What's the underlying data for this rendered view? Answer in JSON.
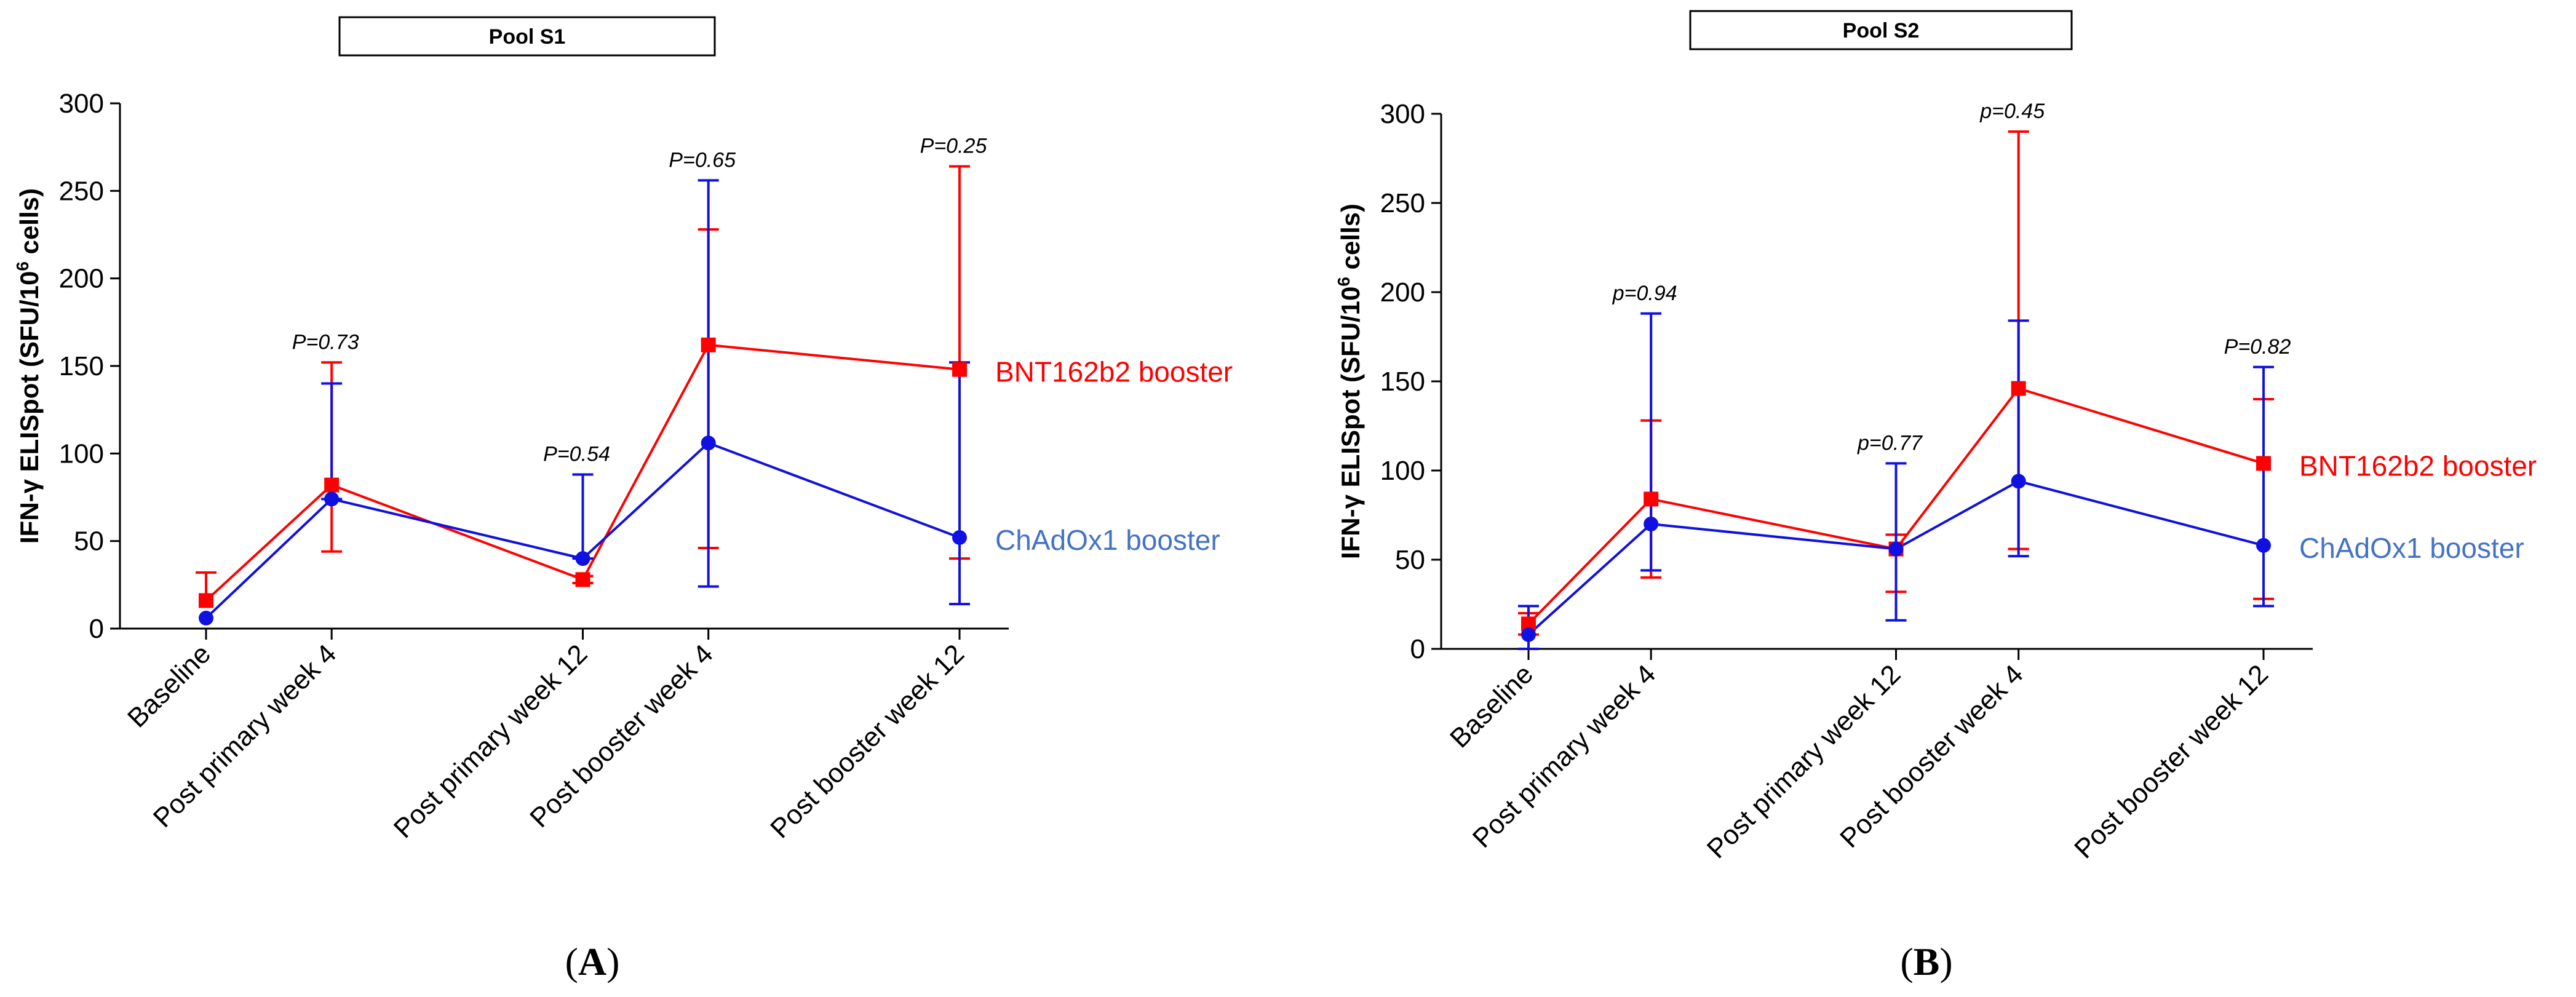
{
  "chart_data": [
    {
      "type": "line",
      "title": "Pool S1",
      "ylabel": "IFN-γ ELISpot (SFU/10⁶ cells)",
      "ylabel_main": "IFN-γ ELISpot (SFU/10",
      "ylabel_sup": "6",
      "ylabel_tail": " cells)",
      "ylim": [
        0,
        300
      ],
      "yticks": [
        0,
        50,
        100,
        150,
        200,
        250,
        300
      ],
      "categories": [
        "Baseline",
        "Post primary week 4",
        "Post primary week 12",
        "Post booster week 4",
        "Post booster week 12"
      ],
      "x": [
        0,
        4,
        12,
        16,
        24
      ],
      "xlim": [
        0,
        24
      ],
      "series": [
        {
          "name": "BNT162b2 booster",
          "color": "#ff0000",
          "marker": "square",
          "values": [
            16,
            82,
            28,
            162,
            148
          ],
          "err_low": [
            null,
            44,
            26,
            46,
            40
          ],
          "err_high": [
            32,
            152,
            30,
            228,
            264
          ]
        },
        {
          "name": "ChAdOx1 booster",
          "color": "#1010e0",
          "label_color": "#4472c4",
          "marker": "circle",
          "values": [
            6,
            74,
            40,
            106,
            52
          ],
          "err_low": [
            null,
            74,
            40,
            24,
            14
          ],
          "err_high": [
            null,
            140,
            88,
            256,
            152
          ]
        }
      ],
      "pvalues": [
        {
          "x": 4,
          "text": "P=0.73"
        },
        {
          "x": 12,
          "text": "P=0.54"
        },
        {
          "x": 16,
          "text": "P=0.65"
        },
        {
          "x": 24,
          "text": "P=0.25"
        }
      ],
      "panel_label": "A"
    },
    {
      "type": "line",
      "title": "Pool S2",
      "ylabel": "IFN-γ ELISpot (SFU/10⁶ cells)",
      "ylabel_main": "IFN-γ ELISpot (SFU/10",
      "ylabel_sup": "6",
      "ylabel_tail": " cells)",
      "ylim": [
        0,
        300
      ],
      "yticks": [
        0,
        50,
        100,
        150,
        200,
        250,
        300
      ],
      "categories": [
        "Baseline",
        "Post primary week 4",
        "Post primary week 12",
        "Post booster week 4",
        "Post booster week 12"
      ],
      "x": [
        0,
        4,
        12,
        16,
        24
      ],
      "xlim": [
        0,
        24
      ],
      "series": [
        {
          "name": "BNT162b2 booster",
          "color": "#ff0000",
          "marker": "square",
          "values": [
            14,
            84,
            56,
            146,
            104
          ],
          "err_low": [
            8,
            40,
            32,
            56,
            28
          ],
          "err_high": [
            20,
            128,
            64,
            290,
            140
          ]
        },
        {
          "name": "ChAdOx1 booster",
          "color": "#1010e0",
          "label_color": "#4472c4",
          "marker": "circle",
          "values": [
            8,
            70,
            56,
            94,
            58
          ],
          "err_low": [
            0,
            44,
            16,
            52,
            24
          ],
          "err_high": [
            24,
            188,
            104,
            184,
            158
          ]
        }
      ],
      "pvalues": [
        {
          "x": 4,
          "text": "p=0.94"
        },
        {
          "x": 12,
          "text": "p=0.77"
        },
        {
          "x": 16,
          "text": "p=0.45"
        },
        {
          "x": 24,
          "text": "P=0.82"
        }
      ],
      "panel_label": "B"
    }
  ]
}
